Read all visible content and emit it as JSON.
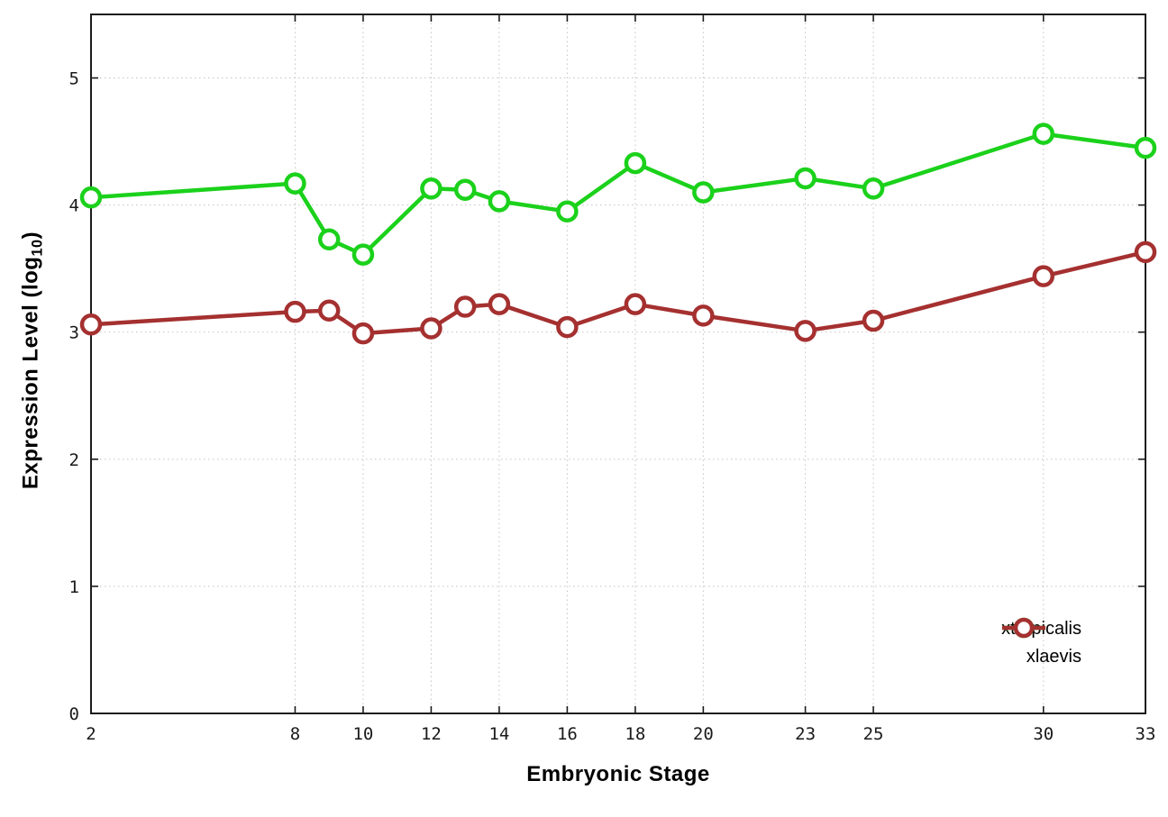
{
  "figure": {
    "xlabel": "Embryonic Stage",
    "ylabel_prefix": "Expression Level (log",
    "ylabel_sub": "10",
    "ylabel_suffix": ")"
  },
  "chart_data": {
    "type": "line",
    "title": "",
    "xlabel": "Embryonic Stage",
    "ylabel": "Expression Level (log10)",
    "x": [
      2,
      8,
      9,
      10,
      12,
      13,
      14,
      16,
      18,
      20,
      23,
      25,
      30,
      33
    ],
    "series": [
      {
        "name": "xtropicalis",
        "color": "#1bd11b",
        "values": [
          4.06,
          4.17,
          3.73,
          3.61,
          4.13,
          4.12,
          4.03,
          3.95,
          4.33,
          4.1,
          4.21,
          4.13,
          4.56,
          4.45
        ]
      },
      {
        "name": "xlaevis",
        "color": "#a53030",
        "values": [
          3.06,
          3.16,
          3.17,
          2.99,
          3.03,
          3.2,
          3.22,
          3.04,
          3.22,
          3.13,
          3.01,
          3.09,
          3.44,
          3.63
        ]
      }
    ],
    "xticks": [
      2,
      8,
      10,
      12,
      14,
      16,
      18,
      20,
      23,
      25,
      30,
      33
    ],
    "yticks": [
      0,
      1,
      2,
      3,
      4,
      5
    ],
    "xlim": [
      2,
      33
    ],
    "ylim": [
      0,
      5.5
    ],
    "grid": true,
    "legend_position": "inside-right",
    "marker": "open-circle"
  },
  "style_colors": {
    "grid": "#c4c4c4",
    "border": "#1c1c1c",
    "tick_label": "#1a1a1a"
  }
}
